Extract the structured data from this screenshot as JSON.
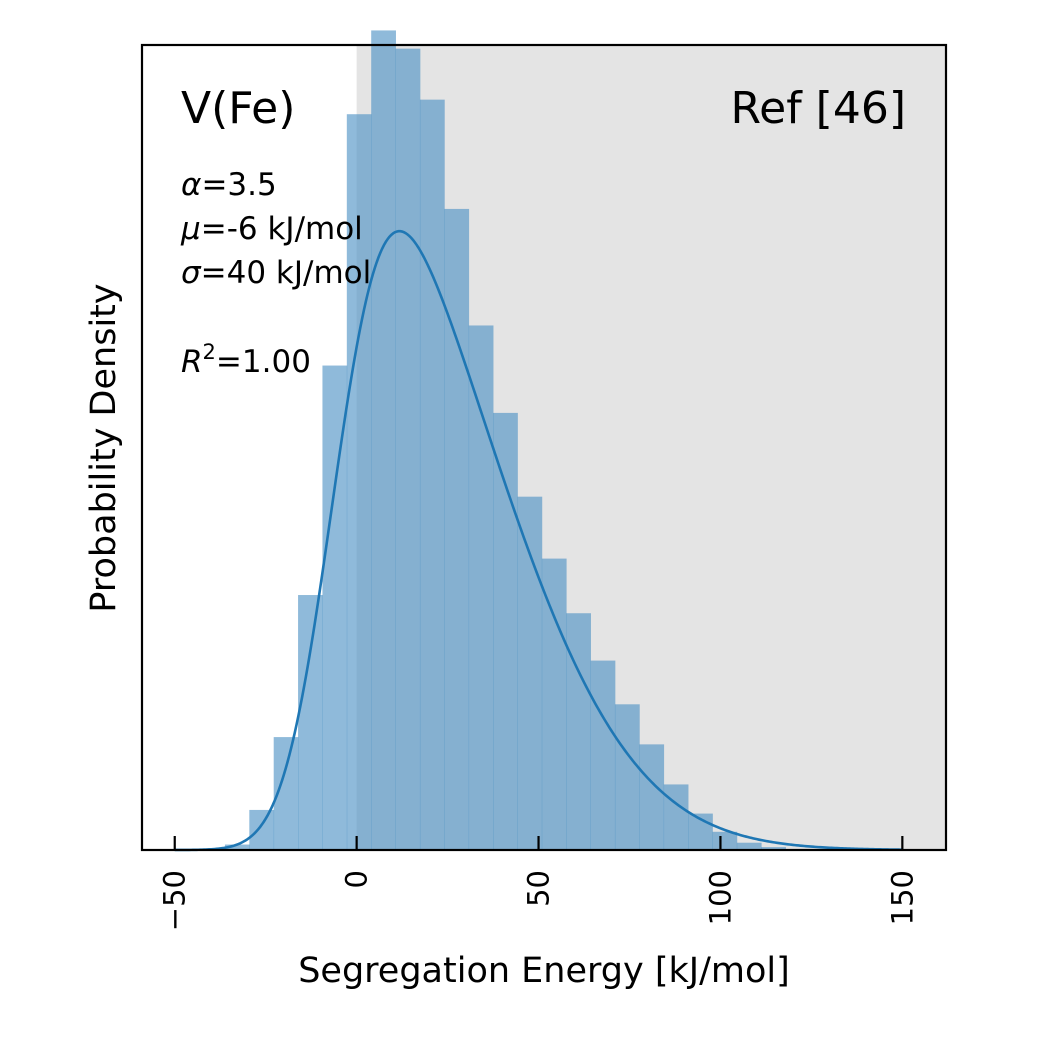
{
  "chart_data": {
    "type": "bar",
    "xlabel": "Segregation Energy [kJ/mol]",
    "ylabel": "Probability Density",
    "xlim": [
      -59,
      162
    ],
    "ylim": [
      0,
      0.0221
    ],
    "xticks": [
      -50,
      0,
      50,
      100,
      150
    ],
    "xtick_labels": [
      "−50",
      "0",
      "50",
      "100",
      "150"
    ],
    "shaded_region": {
      "x_start": 0,
      "color": "#e4e4e4"
    },
    "histogram": {
      "color": "#4a90c4",
      "bin_width": 6.7,
      "edges_start": -36.2,
      "densities": [
        0.00015,
        0.0011,
        0.0031,
        0.007,
        0.0133,
        0.0202,
        0.0225,
        0.022,
        0.0206,
        0.0176,
        0.0144,
        0.012,
        0.0097,
        0.008,
        0.0065,
        0.0052,
        0.004,
        0.0029,
        0.0018,
        0.001,
        0.0005,
        0.0002,
        8e-05
      ]
    },
    "fit": {
      "type": "skew-normal",
      "color": "#1f77b4",
      "alpha": 3.5,
      "mu": -6,
      "sigma": 40,
      "x_range": [
        -50,
        150
      ]
    },
    "annotations": {
      "title_left": "V(Fe)",
      "title_right": "Ref [46]",
      "alpha_label": "α",
      "alpha_value": "=3.5",
      "mu_label": "μ",
      "mu_value": "=-6 kJ/mol",
      "sigma_label": "σ",
      "sigma_value": "=40 kJ/mol",
      "r2_label": "R",
      "r2_sup": "2",
      "r2_value": "=1.00"
    }
  }
}
